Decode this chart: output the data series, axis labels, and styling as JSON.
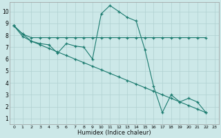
{
  "xlabel": "Humidex (Indice chaleur)",
  "background_color": "#cce8e8",
  "grid_color": "#b0d0d0",
  "line_color": "#1a7a6e",
  "xlim": [
    -0.5,
    23.5
  ],
  "ylim": [
    0.5,
    10.8
  ],
  "xticks": [
    0,
    1,
    2,
    3,
    4,
    5,
    6,
    7,
    8,
    9,
    10,
    11,
    12,
    13,
    14,
    15,
    16,
    17,
    18,
    19,
    20,
    21,
    22,
    23
  ],
  "yticks": [
    1,
    2,
    3,
    4,
    5,
    6,
    7,
    8,
    9,
    10
  ],
  "curve1_x": [
    0,
    1,
    2,
    3,
    4,
    5,
    6,
    7,
    8,
    9,
    10,
    11,
    12,
    13,
    14,
    15,
    16,
    17,
    18,
    19,
    20,
    21,
    22
  ],
  "curve1_y": [
    8.8,
    8.1,
    7.5,
    7.3,
    7.2,
    6.5,
    7.3,
    7.1,
    7.0,
    6.0,
    9.8,
    10.5,
    10.0,
    9.5,
    9.2,
    6.8,
    3.7,
    1.5,
    3.0,
    2.4,
    2.7,
    2.4,
    1.5
  ],
  "curve2_x": [
    0,
    1,
    2,
    3,
    4,
    5,
    6,
    7,
    8,
    9,
    10,
    11,
    12,
    13,
    14,
    15,
    16,
    17,
    18,
    19,
    20,
    21,
    22
  ],
  "curve2_y": [
    8.8,
    8.1,
    7.8,
    7.8,
    7.8,
    7.8,
    7.8,
    7.8,
    7.8,
    7.8,
    7.8,
    7.8,
    7.8,
    7.8,
    7.8,
    7.8,
    7.8,
    7.8,
    7.8,
    7.8,
    7.8,
    7.8,
    7.8
  ],
  "curve3_x": [
    0,
    1,
    2,
    3,
    4,
    5,
    6,
    7,
    8,
    9,
    10,
    11,
    12,
    13,
    14,
    15,
    16,
    17,
    18,
    19,
    20,
    21,
    22
  ],
  "curve3_y": [
    8.8,
    7.9,
    7.5,
    7.2,
    6.9,
    6.6,
    6.3,
    6.0,
    5.7,
    5.4,
    5.1,
    4.8,
    4.5,
    4.2,
    3.9,
    3.6,
    3.3,
    3.0,
    2.7,
    2.4,
    2.1,
    1.8,
    1.5
  ]
}
